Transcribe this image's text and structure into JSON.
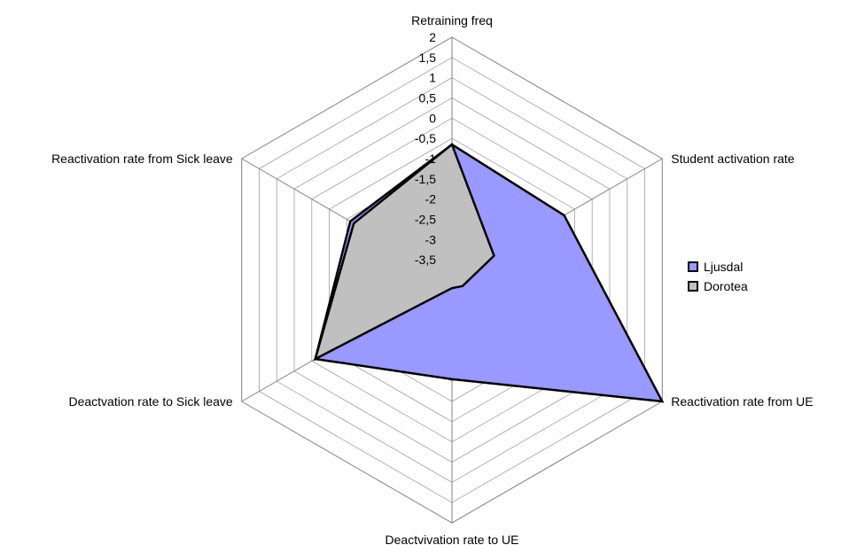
{
  "chart_data": {
    "type": "radar",
    "title": "",
    "axes": [
      "Retraining freq",
      "Student activation rate",
      "Reactivation rate from UE",
      "Deactvivation rate to UE",
      "Deactvation rate to Sick leave",
      "Reactivation rate from Sick leave"
    ],
    "rlim": [
      -4,
      2
    ],
    "ticks": [
      "2",
      "1,5",
      "1",
      "0,5",
      "0",
      "-0,5",
      "-1",
      "-1,5",
      "-2",
      "-2,5",
      "-3",
      "-3,5"
    ],
    "tick_values": [
      2,
      1.5,
      1,
      0.5,
      0,
      -0.5,
      -1,
      -1.5,
      -2,
      -2.5,
      -3,
      -3.5
    ],
    "grid": true,
    "legend_position": "right",
    "series": [
      {
        "name": "Ljusdal",
        "color": "#9999ff",
        "values": [
          -0.65,
          -0.8,
          2.0,
          -1.55,
          -0.1,
          -1.1
        ]
      },
      {
        "name": "Dorotea",
        "color": "#c0c0c0",
        "values": [
          -0.65,
          -2.8,
          -3.7,
          -3.8,
          -0.1,
          -1.2
        ]
      }
    ]
  }
}
